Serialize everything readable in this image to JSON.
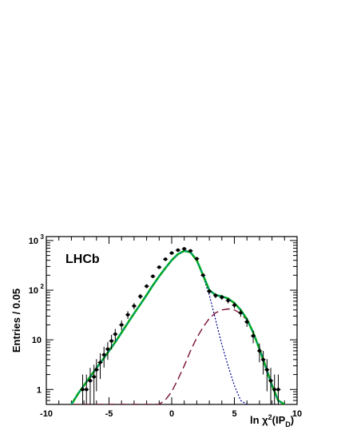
{
  "chart_data": {
    "type": "line",
    "title": "",
    "annotation": "LHCb",
    "xlabel": "ln χ²(IP_D)",
    "xlabel_parts": {
      "main": "ln χ",
      "sup": "2",
      "open": "(IP",
      "sub": "D",
      "close": ")"
    },
    "ylabel": "Entries / 0.05",
    "xlim": [
      -10,
      10
    ],
    "ylim": [
      0.5,
      1200
    ],
    "yscale": "log",
    "grid": false,
    "legend": "none",
    "x_ticks": [
      "-10",
      "-5",
      "0",
      "5",
      "10"
    ],
    "y_ticks": [
      {
        "value": 1,
        "base": "1",
        "exp": ""
      },
      {
        "value": 10,
        "base": "10",
        "exp": ""
      },
      {
        "value": 100,
        "base": "10",
        "exp": "2"
      },
      {
        "value": 1000,
        "base": "10",
        "exp": "3"
      }
    ],
    "data_points": {
      "color": "#000000",
      "x": [
        -7.1,
        -6.8,
        -6.5,
        -6.2,
        -6.0,
        -5.7,
        -5.4,
        -5.1,
        -4.8,
        -4.5,
        -4.0,
        -3.5,
        -3.0,
        -2.5,
        -2.0,
        -1.5,
        -1.0,
        -0.5,
        0.0,
        0.5,
        1.0,
        1.5,
        2.0,
        2.5,
        3.0,
        3.5,
        4.0,
        4.5,
        5.0,
        5.5,
        6.0,
        6.5,
        7.0,
        7.3,
        7.6,
        7.9,
        8.2,
        8.5
      ],
      "y": [
        1,
        1,
        1.5,
        1.8,
        2.5,
        3.5,
        5,
        6.5,
        9.5,
        13,
        20,
        32,
        48,
        75,
        120,
        190,
        290,
        420,
        560,
        640,
        680,
        620,
        430,
        200,
        95,
        78,
        72,
        62,
        50,
        35,
        23,
        12,
        6,
        4,
        2.5,
        1.5,
        1,
        1
      ]
    },
    "series": [
      {
        "color": "#00aa00",
        "style": "solid",
        "x": [
          -8.0,
          -7.5,
          -7.0,
          -6.5,
          -6.0,
          -5.5,
          -5.0,
          -4.5,
          -4.0,
          -3.5,
          -3.0,
          -2.5,
          -2.0,
          -1.5,
          -1.0,
          -0.5,
          0.0,
          0.5,
          1.0,
          1.5,
          2.0,
          2.5,
          3.0,
          3.5,
          4.0,
          4.5,
          5.0,
          5.5,
          6.0,
          6.5,
          7.0,
          7.5,
          8.0,
          8.5,
          9.0
        ],
        "y": [
          0.5,
          0.8,
          1.2,
          1.8,
          2.7,
          4.0,
          6.0,
          9.0,
          14,
          22,
          34,
          52,
          80,
          125,
          190,
          280,
          400,
          530,
          620,
          580,
          400,
          200,
          100,
          80,
          75,
          68,
          55,
          40,
          26,
          14,
          6.5,
          2.8,
          1.2,
          0.6,
          0.5
        ]
      },
      {
        "color": "#009999",
        "style": "dashed",
        "x": [
          -8.0,
          -7.5,
          -7.0,
          -6.5,
          -6.0,
          -5.5,
          -5.0,
          -4.5,
          -4.0,
          -3.5,
          -3.0,
          -2.5,
          -2.0,
          -1.5,
          -1.0,
          -0.5,
          0.0,
          0.5,
          1.0,
          1.5,
          2.0,
          2.5,
          3.0,
          3.5,
          4.0,
          4.5,
          5.0,
          5.5,
          6.0,
          6.5,
          7.0,
          7.5,
          8.0,
          8.5,
          9.0
        ],
        "y": [
          0.5,
          0.8,
          1.2,
          1.8,
          2.7,
          4.0,
          6.0,
          9.0,
          14,
          22,
          34,
          52,
          80,
          125,
          190,
          280,
          400,
          530,
          620,
          580,
          400,
          200,
          100,
          80,
          75,
          68,
          55,
          40,
          26,
          14,
          6.5,
          2.8,
          1.2,
          0.6,
          0.5
        ]
      },
      {
        "color": "#00008b",
        "style": "dotted",
        "x": [
          -2.5,
          -2.0,
          -1.5,
          -1.0,
          -0.5,
          0.0,
          0.5,
          1.0,
          1.5,
          2.0,
          2.5,
          3.0,
          3.5,
          4.0,
          4.5,
          5.0,
          5.5,
          6.0
        ],
        "y": [
          52,
          80,
          125,
          190,
          280,
          400,
          530,
          620,
          580,
          400,
          190,
          80,
          25,
          8,
          3,
          1.2,
          0.6,
          0.5
        ]
      },
      {
        "color": "#7a1030",
        "style": "long-dash",
        "x": [
          -8.0,
          -6.0,
          -4.0,
          -2.0,
          -1.0,
          -0.5,
          0.0,
          0.5,
          1.0,
          1.5,
          2.0,
          2.5,
          3.0,
          3.5,
          4.0,
          4.5,
          5.0,
          5.5,
          6.0,
          6.5,
          7.0,
          7.5,
          8.0,
          8.5,
          9.0
        ],
        "y": [
          0.5,
          0.5,
          0.5,
          0.5,
          0.5,
          0.62,
          0.9,
          1.6,
          3.0,
          6.0,
          11,
          18,
          27,
          35,
          40,
          42,
          40,
          34,
          25,
          14,
          7,
          3,
          1.3,
          0.6,
          0.5
        ]
      }
    ]
  }
}
